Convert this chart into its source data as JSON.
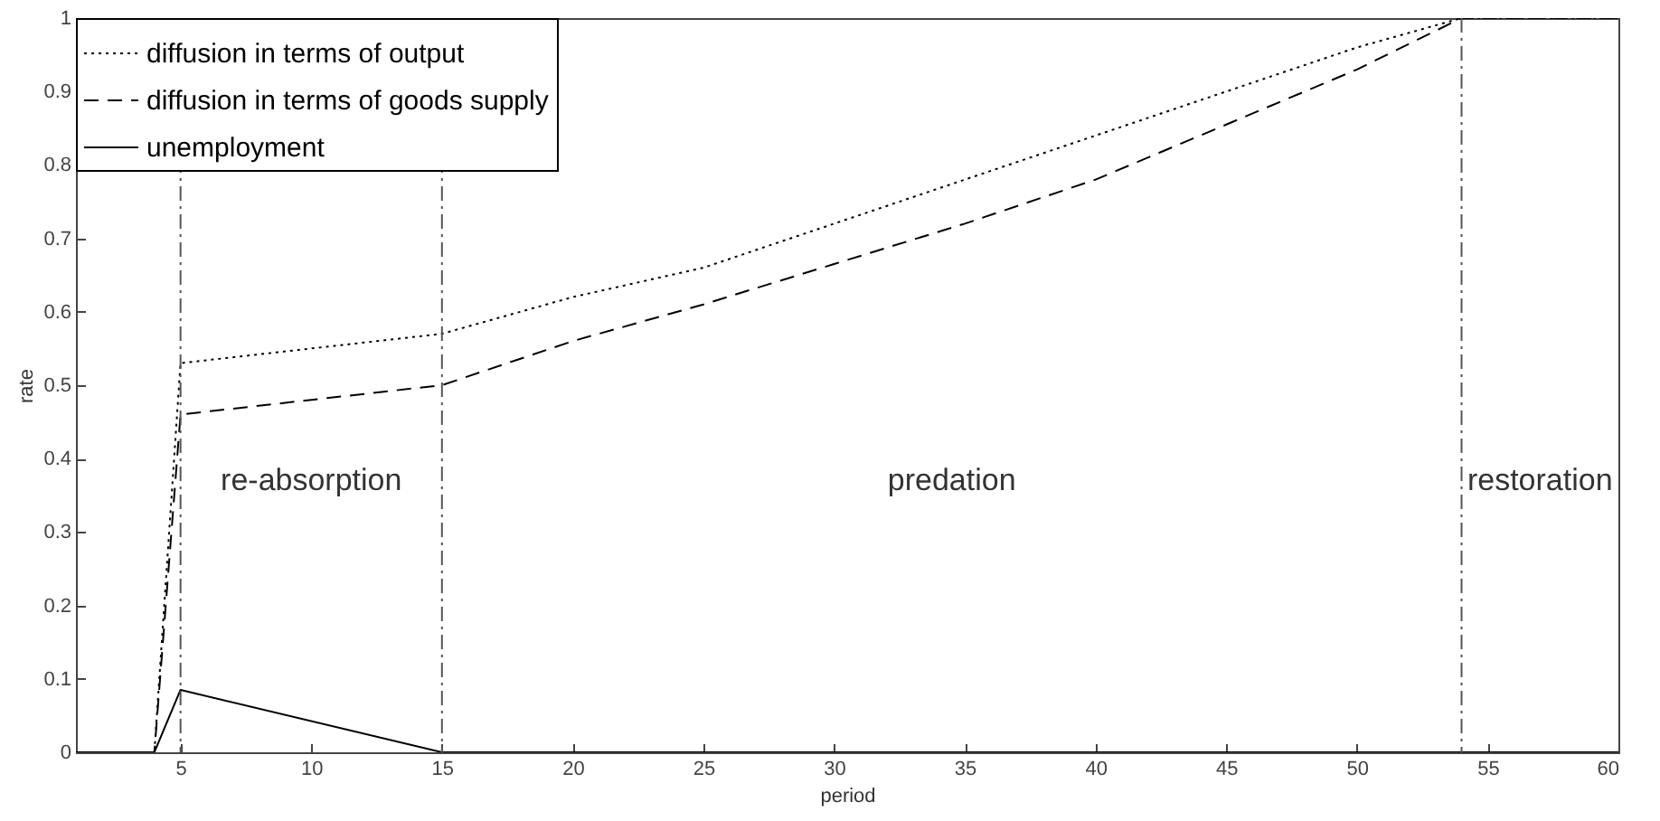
{
  "chart_data": {
    "type": "line",
    "xlabel": "period",
    "ylabel": "rate",
    "xlim": [
      1,
      60
    ],
    "xticks": [
      5,
      10,
      15,
      20,
      25,
      30,
      35,
      40,
      45,
      50,
      55,
      60
    ],
    "ylim": [
      0,
      1
    ],
    "yticks": [
      0,
      0.1,
      0.2,
      0.3,
      0.4,
      0.5,
      0.6,
      0.7,
      0.8,
      0.9,
      1
    ],
    "legend": "top left",
    "grid": false,
    "series": [
      {
        "name": "diffusion in terms of output",
        "color": "#000000",
        "line_style": "dotted",
        "x": [
          1,
          4,
          5,
          15,
          20,
          25,
          30,
          35,
          40,
          45,
          50,
          54,
          60
        ],
        "values": [
          0,
          0,
          0.53,
          0.57,
          0.62,
          0.66,
          0.72,
          0.78,
          0.84,
          0.9,
          0.96,
          1,
          1
        ]
      },
      {
        "name": "diffusion in terms of goods supply",
        "color": "#000000",
        "line_style": "dashed",
        "x": [
          1,
          4,
          5,
          15,
          20,
          25,
          30,
          35,
          40,
          45,
          50,
          54,
          60
        ],
        "values": [
          0,
          0,
          0.46,
          0.5,
          0.56,
          0.61,
          0.665,
          0.72,
          0.78,
          0.855,
          0.93,
          1,
          1
        ]
      },
      {
        "name": "unemployment",
        "color": "#000000",
        "line_style": "solid",
        "x": [
          1,
          4,
          5,
          15,
          60
        ],
        "values": [
          0,
          0,
          0.085,
          0,
          0
        ]
      }
    ],
    "ref_lines": [
      {
        "axis": "x",
        "value": 5,
        "color": "#555555",
        "line_style": "dashdot"
      },
      {
        "axis": "x",
        "value": 15,
        "color": "#555555",
        "line_style": "dashdot"
      },
      {
        "axis": "x",
        "value": 54,
        "color": "#555555",
        "line_style": "dashdot"
      }
    ],
    "annotations": [
      "re-absorption",
      "predation",
      "restoration"
    ]
  }
}
